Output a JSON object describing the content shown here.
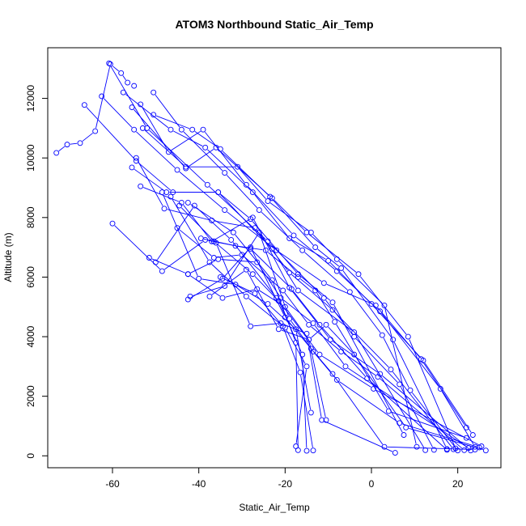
{
  "chart_data": {
    "type": "line",
    "title": "ATOM3 Northbound Static_Air_Temp",
    "xlabel": "Static_Air_Temp",
    "ylabel": "Altitude (m)",
    "xlim": [
      -75,
      30
    ],
    "ylim": [
      -400,
      13700
    ],
    "x_ticks": [
      -60,
      -40,
      -20,
      0,
      20
    ],
    "y_ticks": [
      0,
      2000,
      4000,
      6000,
      8000,
      10000,
      12000
    ],
    "grid": false,
    "legend": "none",
    "color": "#0000ff",
    "marker": "open-circle",
    "series": [
      {
        "x": [
          -73.0,
          -70.5,
          -67.5,
          -64.0,
          -60.5,
          -58.0,
          -56.5,
          -55.0
        ],
        "y": [
          10170,
          10450,
          10500,
          10900,
          13150,
          12850,
          12530,
          12420
        ]
      },
      {
        "x": [
          -60.8,
          -52.0,
          -38.0,
          -24.0,
          -11.0,
          -4.0,
          6.5,
          14.5
        ],
        "y": [
          13180,
          11000,
          9100,
          7200,
          5300,
          4000,
          2400,
          200
        ]
      },
      {
        "x": [
          -50.5,
          -44.0,
          -34.0,
          -26.0,
          -16.0,
          -5.0,
          2.5,
          9.0,
          20.0
        ],
        "y": [
          12200,
          10950,
          9500,
          8250,
          6900,
          5500,
          4050,
          2200,
          180
        ]
      },
      {
        "x": [
          -62.5,
          -55.0,
          -45.0,
          -34.0,
          -22.0,
          -11.0,
          1.0,
          11.5,
          22.0
        ],
        "y": [
          12070,
          10950,
          9600,
          8250,
          6900,
          5800,
          5050,
          3250,
          950
        ]
      },
      {
        "x": [
          -57.5,
          -46.5,
          -38.5,
          -27.5,
          -19.0,
          -10.0,
          0.0,
          12.0,
          23.5
        ],
        "y": [
          12200,
          10950,
          10350,
          8850,
          7300,
          6550,
          5100,
          3200,
          700
        ]
      },
      {
        "x": [
          -53.5,
          -47.0,
          -39.0,
          -29.0,
          -18.0,
          -8.0,
          2.0,
          16.0,
          24.0
        ],
        "y": [
          11800,
          10200,
          10950,
          9100,
          7400,
          6200,
          4850,
          2250,
          300
        ]
      },
      {
        "x": [
          -55.5,
          -43.0,
          -36.0,
          -23.0,
          -15.0,
          -3.0,
          8.5,
          19.5
        ],
        "y": [
          11700,
          9650,
          10350,
          8650,
          7500,
          6100,
          4000,
          250
        ]
      },
      {
        "x": [
          -50.5,
          -41.5,
          -35.0,
          -23.5,
          -13.0,
          -7.0,
          5.0,
          17.5
        ],
        "y": [
          11450,
          10950,
          10300,
          8700,
          7000,
          6300,
          3900,
          230
        ]
      },
      {
        "x": [
          -53.0,
          -43.0,
          -31.0,
          -24.0,
          -14.0,
          -8.0,
          3.0,
          10.5
        ],
        "y": [
          11000,
          9700,
          9700,
          8550,
          7500,
          6600,
          5050,
          300
        ]
      },
      {
        "x": [
          -66.5,
          -54.5,
          -46.0,
          -35.5,
          -28.0,
          -17.0,
          -9.0,
          7.5
        ],
        "y": [
          11780,
          9900,
          8850,
          8850,
          7950,
          6100,
          5150,
          700
        ]
      },
      {
        "x": [
          -55.5,
          -47.5,
          -35.5,
          -23.0,
          -17.0,
          -4.0,
          12.5
        ],
        "y": [
          9680,
          8850,
          8850,
          6950,
          5550,
          4150,
          190
        ]
      },
      {
        "x": [
          -54.5,
          -48.0,
          -37.0,
          -27.0,
          -19.0,
          -9.0,
          4.5,
          19.0
        ],
        "y": [
          10000,
          8300,
          7900,
          7650,
          6150,
          4900,
          2900,
          220
        ]
      },
      {
        "x": [
          -60.0,
          -48.5,
          -38.5,
          -28.0,
          -18.5,
          -12.0,
          -1.0,
          17.5
        ],
        "y": [
          7800,
          6200,
          7250,
          6950,
          5600,
          4400,
          2600,
          200
        ]
      },
      {
        "x": [
          -53.5,
          -44.0,
          -37.0,
          -27.5,
          -19.0,
          -9.5,
          2.0,
          23.0
        ],
        "y": [
          9050,
          8500,
          7200,
          8000,
          5650,
          3900,
          2750,
          180
        ]
      },
      {
        "x": [
          -51.5,
          -42.5,
          -35.5,
          -26.5,
          -21.0,
          -13.5,
          -6.0,
          22.5
        ],
        "y": [
          6650,
          6100,
          6600,
          6500,
          5300,
          4450,
          3000,
          260
        ]
      },
      {
        "x": [
          -45.0,
          -36.5,
          -30.0,
          -20.5,
          -14.5,
          -7.0,
          1.5,
          21.5
        ],
        "y": [
          7650,
          6650,
          6750,
          5550,
          4400,
          3500,
          2650,
          190
        ]
      },
      {
        "x": [
          -42.5,
          -34.5,
          -28.0,
          -20.0,
          -14.0,
          -9.0,
          3.0,
          24.0
        ],
        "y": [
          5250,
          5950,
          7000,
          4650,
          3600,
          2750,
          300,
          210
        ]
      },
      {
        "x": [
          -42.0,
          -34.0,
          -26.0,
          -19.0,
          -13.5,
          -8.0,
          6.5,
          25.0
        ],
        "y": [
          5350,
          5700,
          7500,
          4600,
          3500,
          2550,
          1100,
          280
        ]
      },
      {
        "x": [
          -50.0,
          -41.0,
          -32.5,
          -22.0,
          -12.0,
          0.5,
          25.5
        ],
        "y": [
          6500,
          8400,
          7250,
          5300,
          3400,
          2250,
          320
        ]
      },
      {
        "x": [
          -37.5,
          -29.0,
          -21.5,
          -14.5,
          -10.5,
          -4.0,
          8.0,
          26.5
        ],
        "y": [
          5350,
          6250,
          4250,
          3900,
          4400,
          3400,
          950,
          180
        ]
      },
      {
        "x": [
          -39.5,
          -31.5,
          -24.5,
          -17.0,
          -13.0,
          -8.5,
          4.0,
          22.0
        ],
        "y": [
          7300,
          7050,
          6900,
          6000,
          5550,
          4500,
          1500,
          600
        ]
      },
      {
        "x": [
          -44.5,
          -36.0,
          -28.0,
          -21.0,
          -15.0,
          -11.5,
          5.5
        ],
        "y": [
          8400,
          7150,
          4350,
          4450,
          4100,
          1200,
          100
        ]
      },
      {
        "x": [
          -48.5,
          -40.0,
          -31.5,
          -24.0,
          -17.5,
          -14.0
        ],
        "y": [
          8850,
          5950,
          5750,
          5100,
          4250,
          1450
        ]
      },
      {
        "x": [
          -42.5,
          -34.5,
          -26.5,
          -20.0,
          -14.5,
          -10.5
        ],
        "y": [
          6100,
          5300,
          5600,
          5000,
          3900,
          1200
        ]
      },
      {
        "x": [
          -35.0,
          -27.0,
          -20.5,
          -16.5,
          -13.5
        ],
        "y": [
          6000,
          5450,
          4350,
          2800,
          180
        ]
      },
      {
        "x": [
          -46.5,
          -37.5,
          -29.0,
          -20.0,
          -15.0,
          -17.5
        ],
        "y": [
          8700,
          6500,
          5350,
          4300,
          3000,
          320
        ]
      },
      {
        "x": [
          -36.5,
          -27.5,
          -21.5,
          -16.0,
          -15.0
        ],
        "y": [
          7200,
          6100,
          5200,
          3400,
          170
        ]
      },
      {
        "x": [
          -42.5,
          -32.0,
          -23.0,
          -17.5,
          -17.0
        ],
        "y": [
          8500,
          7500,
          5900,
          3800,
          190
        ]
      }
    ]
  }
}
